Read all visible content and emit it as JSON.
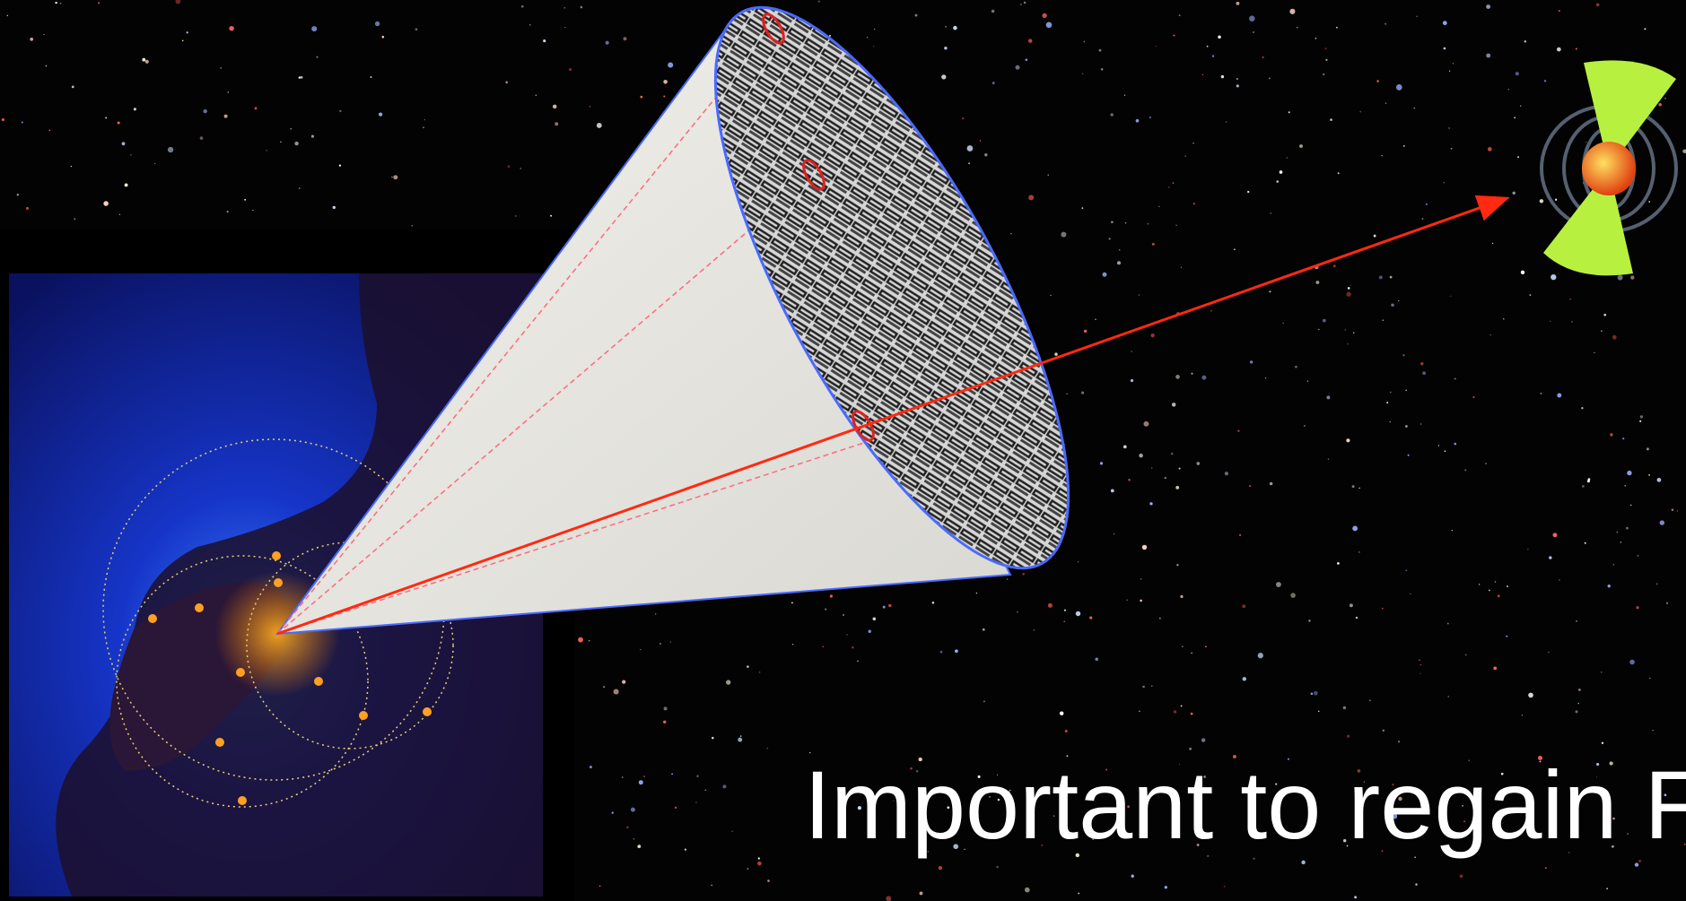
{
  "slide": {
    "caption": "Important to regain F"
  }
}
